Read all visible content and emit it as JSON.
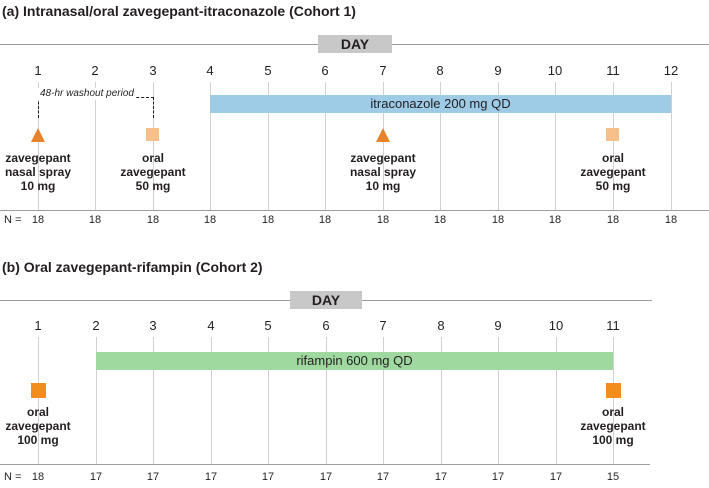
{
  "panel_a": {
    "title": "(a)  Intranasal/oral zavegepant-itraconazole (Cohort 1)",
    "day_label": "DAY",
    "days": [
      "1",
      "2",
      "3",
      "4",
      "5",
      "6",
      "7",
      "8",
      "9",
      "10",
      "11",
      "12"
    ],
    "washout_label": "48-hr washout period",
    "treatment_bar": "itraconazole 200 mg QD",
    "doses": [
      {
        "lines": [
          "zavegepant",
          "nasal spray",
          "10 mg"
        ]
      },
      {
        "lines": [
          "oral",
          "zavegepant",
          "50 mg"
        ]
      },
      {
        "lines": [
          "zavegepant",
          "nasal spray",
          "10 mg"
        ]
      },
      {
        "lines": [
          "oral",
          "zavegepant",
          "50 mg"
        ]
      }
    ],
    "n_label": "N =",
    "n_values": [
      "18",
      "18",
      "18",
      "18",
      "18",
      "18",
      "18",
      "18",
      "18",
      "18",
      "18",
      "18"
    ]
  },
  "panel_b": {
    "title": "(b)  Oral zavegepant-rifampin (Cohort 2)",
    "day_label": "DAY",
    "days": [
      "1",
      "2",
      "3",
      "4",
      "5",
      "6",
      "7",
      "8",
      "9",
      "10",
      "11"
    ],
    "treatment_bar": "rifampin 600 mg QD",
    "doses": [
      {
        "lines": [
          "oral",
          "zavegepant",
          "100 mg"
        ]
      },
      {
        "lines": [
          "oral",
          "zavegepant",
          "100 mg"
        ]
      }
    ],
    "n_label": "N =",
    "n_values": [
      "18",
      "17",
      "17",
      "17",
      "17",
      "17",
      "17",
      "17",
      "17",
      "17",
      "15"
    ]
  },
  "colors": {
    "itraconazole_bar": "#9ecbe6",
    "rifampin_bar": "#9fd9a0",
    "nasal_triangle": "#e8822a",
    "oral_square_light": "#f7c08b",
    "oral_square_dark": "#f28c1a"
  }
}
